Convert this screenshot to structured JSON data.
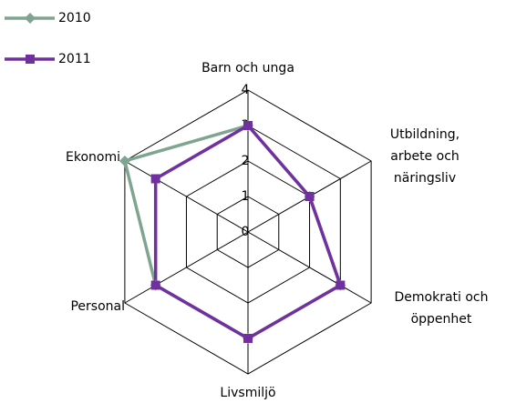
{
  "chart_data": {
    "type": "radar",
    "categories": [
      "Barn och unga",
      "Utbildning,\narbete och\nnäringsliv",
      "Demokrati och\nöppenhet",
      "Livsmiljö",
      "Personal",
      "Ekonomi"
    ],
    "series": [
      {
        "name": "2010",
        "color": "#7fa590",
        "marker": "diamond",
        "values": [
          3,
          2,
          3,
          3,
          3,
          4
        ]
      },
      {
        "name": "2011",
        "color": "#7030a0",
        "marker": "square",
        "values": [
          3,
          2,
          3,
          3,
          3,
          3
        ]
      }
    ],
    "ylim": [
      0,
      4
    ],
    "yticks": [
      0,
      1,
      2,
      3,
      4
    ],
    "grid": true,
    "legend": "top-left"
  }
}
